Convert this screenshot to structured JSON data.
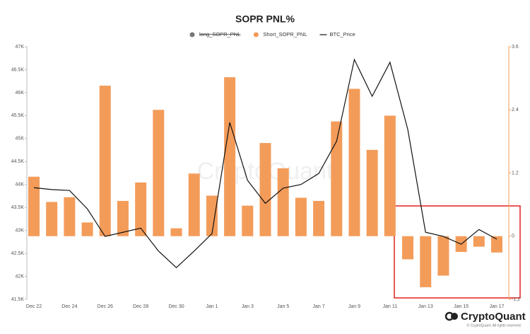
{
  "chart_data": {
    "type": "bar_line",
    "title": "SOPR PNL%",
    "watermark": "CryptoQuant",
    "brand": "CryptoQuant",
    "copyright": "© CryptoQuant. All rights reserved.",
    "categories": [
      "Dec 22",
      null,
      "Dec 24",
      null,
      "Dec 26",
      null,
      "Dec 28",
      null,
      "Dec 30",
      null,
      "Jan 1",
      null,
      "Jan 3",
      null,
      "Jan 5",
      null,
      "Jan 7",
      null,
      "Jan 9",
      null,
      "Jan 11",
      null,
      "Jan 13",
      null,
      "Jan 15",
      null,
      "Jan 17"
    ],
    "series": [
      {
        "name": "long_SOPR_PNL",
        "color": "#777777",
        "hidden": true
      },
      {
        "name": "Short_SOPR_PNL",
        "color": "#f39c5a",
        "type": "bar",
        "axis": "y2",
        "values": [
          1.13,
          0.65,
          0.74,
          0.26,
          2.86,
          0.67,
          1.02,
          2.4,
          0.15,
          1.19,
          0.77,
          3.02,
          0.58,
          1.77,
          1.29,
          0.73,
          0.67,
          2.18,
          2.8,
          1.64,
          2.29,
          -0.44,
          -0.97,
          -0.75,
          -0.3,
          -0.2,
          -0.31
        ]
      },
      {
        "name": "BTC_Price",
        "color": "#111111",
        "type": "line",
        "axis": "y",
        "values": [
          43930,
          43890,
          43870,
          43470,
          42870,
          42960,
          43050,
          42550,
          42190,
          42550,
          42930,
          45350,
          44090,
          43590,
          43920,
          44000,
          44240,
          44940,
          46720,
          45920,
          46660,
          45200,
          42960,
          42870,
          42700,
          43020,
          42810
        ]
      }
    ],
    "ylim": [
      41500,
      47000
    ],
    "yticks": [
      {
        "value": 41500,
        "label": "41.5K"
      },
      {
        "value": 42000,
        "label": "42K"
      },
      {
        "value": 42500,
        "label": "42.5K"
      },
      {
        "value": 43000,
        "label": "43K"
      },
      {
        "value": 43500,
        "label": "43.5K"
      },
      {
        "value": 44000,
        "label": "44K"
      },
      {
        "value": 44500,
        "label": "44.5K"
      },
      {
        "value": 45000,
        "label": "45K"
      },
      {
        "value": 45500,
        "label": "45.5K"
      },
      {
        "value": 46000,
        "label": "46K"
      },
      {
        "value": 46500,
        "label": "46.5K"
      },
      {
        "value": 47000,
        "label": "47K"
      }
    ],
    "y2lim": [
      -1.2,
      3.6
    ],
    "y2ticks": [
      -1.2,
      0,
      1.2,
      2.4,
      3.6
    ],
    "y2color": "#f39c5a"
  }
}
